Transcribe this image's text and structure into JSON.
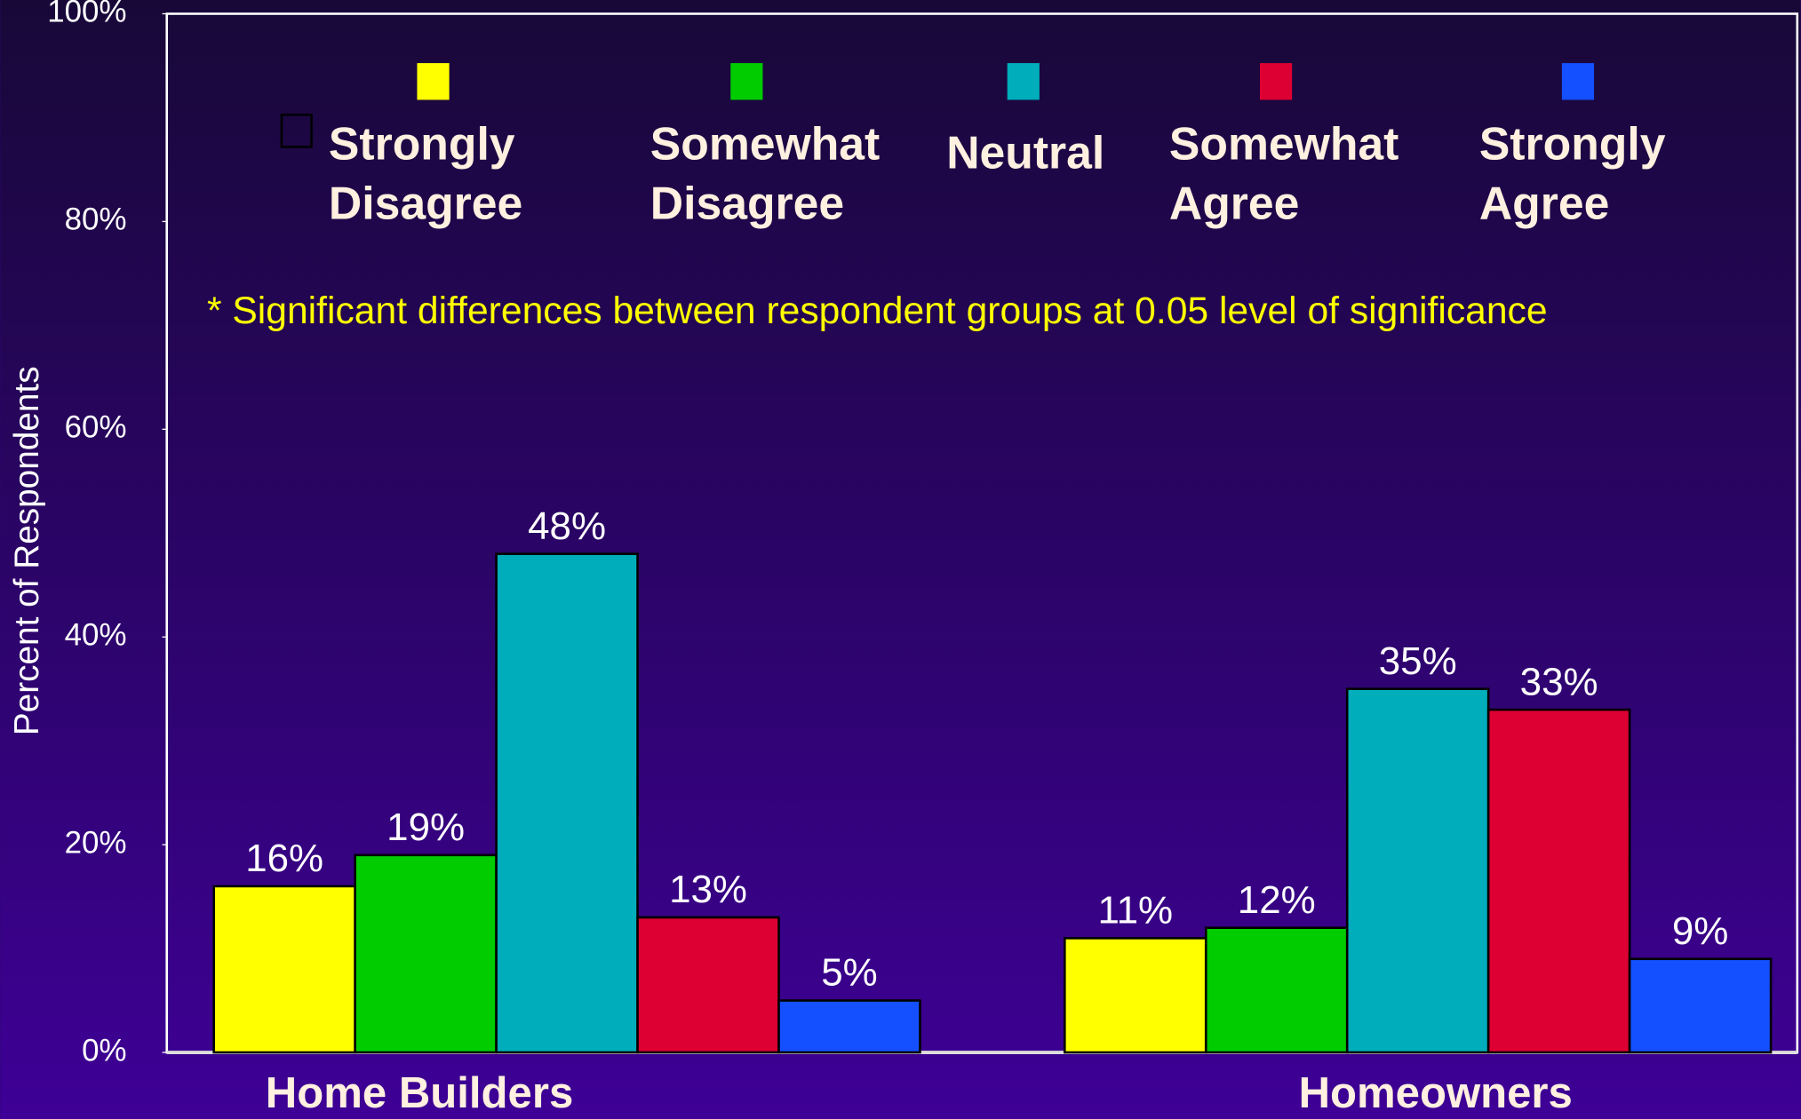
{
  "chart_data": {
    "type": "bar",
    "ylabel": "Percent of Respondents",
    "annotation": "* Significant differences between respondent groups at 0.05 level of significance",
    "categories": [
      "Home Builders",
      "Homeowners"
    ],
    "series": [
      {
        "name": "Strongly Disagree",
        "color": "#ffff00",
        "values": [
          16,
          11
        ],
        "value_labels": [
          "16%",
          "11%"
        ]
      },
      {
        "name": "Somewhat Disagree",
        "color": "#00cc00",
        "values": [
          19,
          12
        ],
        "value_labels": [
          "19%",
          "12%"
        ]
      },
      {
        "name": "Neutral",
        "color": "#00adbb",
        "values": [
          48,
          35
        ],
        "value_labels": [
          "48%",
          "35%"
        ]
      },
      {
        "name": "Somewhat Agree",
        "color": "#dd0033",
        "values": [
          13,
          33
        ],
        "value_labels": [
          "13%",
          "33%"
        ]
      },
      {
        "name": "Strongly Agree",
        "color": "#1450ff",
        "values": [
          5,
          9
        ],
        "value_labels": [
          "5%",
          "9%"
        ]
      }
    ],
    "ylim": [
      0,
      100
    ],
    "yticks": [
      {
        "value": 0,
        "label": "0%"
      },
      {
        "value": 20,
        "label": "20%"
      },
      {
        "value": 40,
        "label": "40%"
      },
      {
        "value": 60,
        "label": "60%"
      },
      {
        "value": 80,
        "label": "80%"
      },
      {
        "value": 100,
        "label": "100%"
      }
    ],
    "grid": false
  }
}
